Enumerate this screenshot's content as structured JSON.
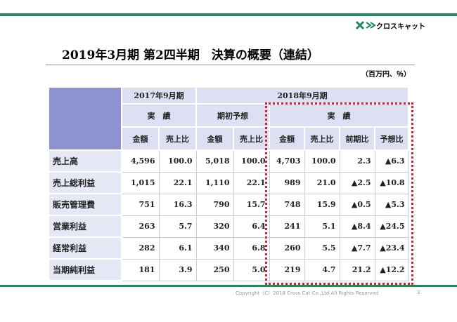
{
  "header": {
    "logo": "クロスキャット",
    "title": "2019年3月期 第2四半期　決算の概要（連結）",
    "unit": "（百万円、％）"
  },
  "table": {
    "period_headers": [
      "2017年9月期",
      "2018年9月期"
    ],
    "group_headers": [
      "実　績",
      "期初予想",
      "実　績"
    ],
    "column_headers": [
      "金額",
      "売上比",
      "金額",
      "売上比",
      "金額",
      "売上比",
      "前期比",
      "予想比"
    ],
    "rows": [
      [
        "売上高",
        "4,596",
        "100.0",
        "5,018",
        "100.0",
        "4,703",
        "100.0",
        "2.3",
        "▲6.3"
      ],
      [
        "売上総利益",
        "1,015",
        "22.1",
        "1,110",
        "22.1",
        "989",
        "21.0",
        "▲2.5",
        "▲10.8"
      ],
      [
        "販売管理費",
        "751",
        "16.3",
        "790",
        "15.7",
        "748",
        "15.9",
        "▲0.5",
        "▲5.3"
      ],
      [
        "営業利益",
        "263",
        "5.7",
        "320",
        "6.4",
        "241",
        "5.1",
        "▲8.4",
        "▲24.5"
      ],
      [
        "経常利益",
        "282",
        "6.1",
        "340",
        "6.8",
        "260",
        "5.5",
        "▲7.7",
        "▲23.4"
      ],
      [
        "当期純利益",
        "181",
        "3.9",
        "250",
        "5.0",
        "219",
        "4.7",
        "21.2",
        "▲12.2"
      ]
    ]
  },
  "footer": {
    "copyright": "Copyright（C）2018 Cross Cat Co.,Ltd All Rights Reserved",
    "page": "3"
  }
}
